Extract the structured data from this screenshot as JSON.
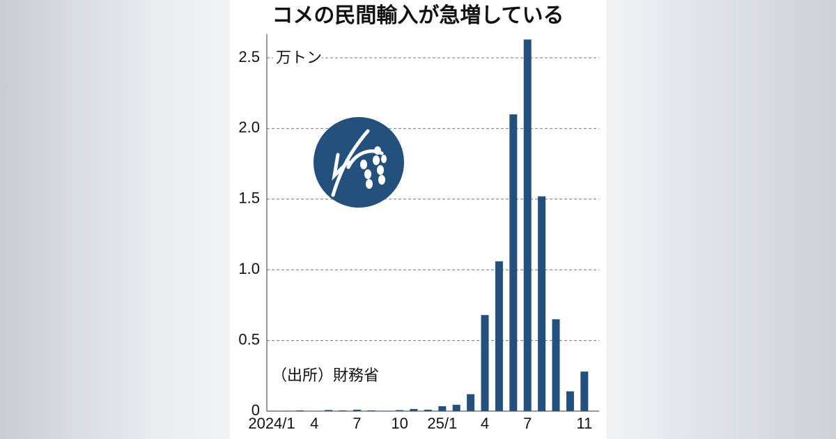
{
  "chart_data": {
    "type": "bar",
    "title": "コメの民間輸入が急増している",
    "y_label": "万トン",
    "annotation": "（出所）財務省",
    "categories": [
      "2024/1",
      null,
      null,
      "4",
      null,
      null,
      "7",
      null,
      null,
      "10",
      null,
      null,
      "25/1",
      null,
      null,
      "4",
      null,
      null,
      "7",
      null,
      null,
      null,
      "11"
    ],
    "values": [
      0.003,
      0.003,
      0.005,
      0.002,
      0.008,
      0.005,
      0.01,
      0.005,
      0.003,
      0.007,
      0.015,
      0.01,
      0.035,
      0.045,
      0.12,
      0.68,
      1.06,
      2.1,
      2.63,
      1.52,
      0.65,
      0.14,
      0.28
    ],
    "color": "#24507e",
    "ylim": [
      0,
      2.65
    ],
    "yticks": [
      0,
      0.5,
      {
        "value": 1,
        "label": "1.0"
      },
      1.5,
      {
        "value": 2,
        "label": "2.0"
      },
      2.5
    ],
    "grid": true
  }
}
